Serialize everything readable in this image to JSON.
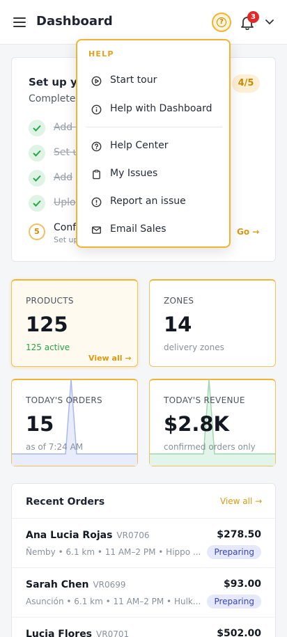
{
  "header": {
    "title": "Dashboard",
    "notification_count": "3"
  },
  "setup": {
    "title": "Set up yo",
    "subtitle": "Complete",
    "progress": "4/5",
    "steps": [
      {
        "label": "Add y",
        "done": true
      },
      {
        "label": "Set u",
        "done": true
      },
      {
        "label": "Add",
        "done": true
      },
      {
        "label": "Uplo",
        "done": true
      }
    ],
    "step5": {
      "num": "5",
      "label": "Conf",
      "sub": "Set up"
    },
    "go_label": "Go →"
  },
  "help_menu": {
    "heading": "HELP",
    "items": [
      {
        "label": "Start tour",
        "icon": "play-circle-icon"
      },
      {
        "label": "Help with Dashboard",
        "icon": "info-icon"
      },
      {
        "label": "Help Center",
        "icon": "question-circle-icon"
      },
      {
        "label": "My Issues",
        "icon": "clipboard-icon"
      },
      {
        "label": "Report an issue",
        "icon": "alert-circle-icon"
      },
      {
        "label": "Email Sales",
        "icon": "mail-icon"
      }
    ]
  },
  "stats": {
    "products": {
      "label": "PRODUCTS",
      "value": "125",
      "sub": "125 active",
      "link": "View all →"
    },
    "zones": {
      "label": "ZONES",
      "value": "14",
      "sub": "delivery zones"
    },
    "orders": {
      "label": "TODAY'S ORDERS",
      "value": "15",
      "sub": "as of 7:24 AM"
    },
    "revenue": {
      "label": "TODAY'S REVENUE",
      "value": "$2.8K",
      "sub": "confirmed orders only"
    }
  },
  "recent_orders": {
    "title": "Recent Orders",
    "view_all": "View all →",
    "rows": [
      {
        "name": "Ana Lucia Rojas",
        "id": "VR0706",
        "city": "Ñemby",
        "distance": "6.1 km",
        "window": "11 AM–2 PM",
        "store": "Hippo ...",
        "amount": "$278.50",
        "status": "Preparing"
      },
      {
        "name": "Sarah Chen",
        "id": "VR0699",
        "city": "Asunción",
        "distance": "6.1 km",
        "window": "11 AM–2 PM",
        "store": "Hulk...",
        "amount": "$93.00",
        "status": "Preparing"
      },
      {
        "name": "Lucia Flores",
        "id": "VR0701",
        "city": "",
        "distance": "",
        "window": "",
        "store": "",
        "amount": "$502.00",
        "status": ""
      }
    ]
  },
  "colors": {
    "accent": "#f2b430",
    "success": "#25a148",
    "badge": "#e02929",
    "status_bg": "#e6e8fb"
  }
}
